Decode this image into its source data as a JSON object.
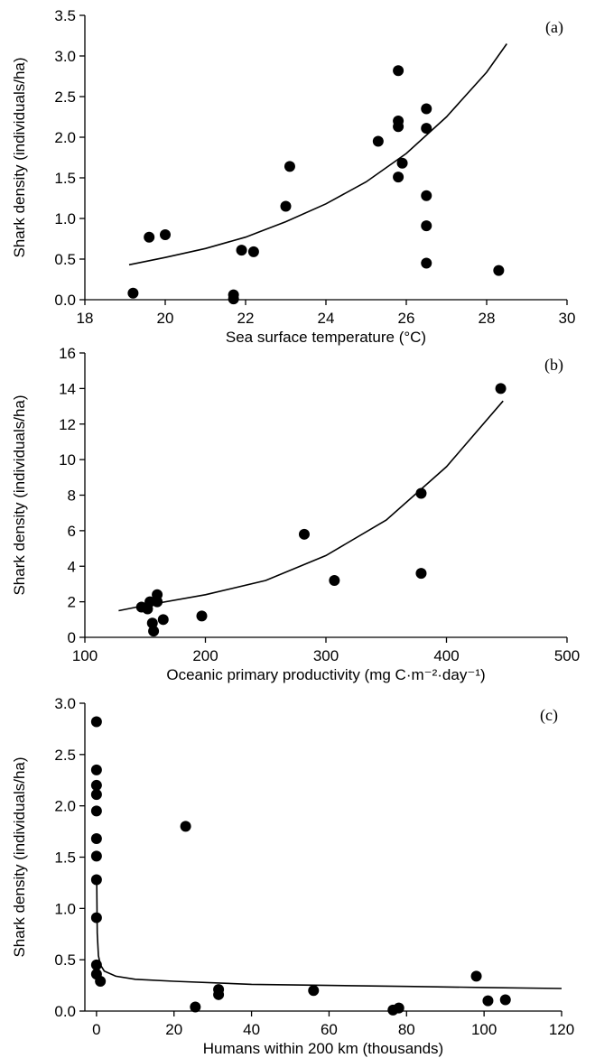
{
  "chart_data": [
    {
      "type": "scatter",
      "panel_label": "(a)",
      "xlabel": "Sea surface temperature (°C)",
      "ylabel": "Shark density (individuals/ha)",
      "xlim": [
        18,
        30
      ],
      "ylim": [
        0,
        3.5
      ],
      "xticks": [
        "18",
        "20",
        "22",
        "24",
        "26",
        "28",
        "30"
      ],
      "yticks": [
        "0.0",
        "0.5",
        "1.0",
        "1.5",
        "2.0",
        "2.5",
        "3.0",
        "3.5"
      ],
      "grid": false,
      "points": [
        [
          19.2,
          0.08
        ],
        [
          19.6,
          0.77
        ],
        [
          20.0,
          0.8
        ],
        [
          21.7,
          0.06
        ],
        [
          21.7,
          0.01
        ],
        [
          21.9,
          0.61
        ],
        [
          22.2,
          0.59
        ],
        [
          23.0,
          1.15
        ],
        [
          23.1,
          1.64
        ],
        [
          25.3,
          1.95
        ],
        [
          25.8,
          2.82
        ],
        [
          25.8,
          2.2
        ],
        [
          25.8,
          2.13
        ],
        [
          25.8,
          1.51
        ],
        [
          25.9,
          1.68
        ],
        [
          26.5,
          2.35
        ],
        [
          26.5,
          2.11
        ],
        [
          26.5,
          1.28
        ],
        [
          26.5,
          0.91
        ],
        [
          26.5,
          0.45
        ],
        [
          28.3,
          0.36
        ]
      ],
      "fit": {
        "model": "exponential",
        "x": [
          19.1,
          20,
          21,
          22,
          23,
          24,
          25,
          26,
          27,
          28,
          28.5
        ],
        "y": [
          0.43,
          0.52,
          0.63,
          0.77,
          0.96,
          1.18,
          1.45,
          1.8,
          2.25,
          2.8,
          3.15
        ]
      }
    },
    {
      "type": "scatter",
      "panel_label": "(b)",
      "xlabel": "Oceanic primary productivity (mg C·m⁻²·day⁻¹)",
      "ylabel": "Shark density (individuals/ha)",
      "xlim": [
        100,
        500
      ],
      "ylim": [
        0,
        16
      ],
      "xticks": [
        "100",
        "200",
        "300",
        "400",
        "500"
      ],
      "yticks": [
        "0",
        "2",
        "4",
        "6",
        "8",
        "10",
        "12",
        "14",
        "16"
      ],
      "grid": false,
      "points": [
        [
          147,
          1.7
        ],
        [
          152,
          1.6
        ],
        [
          154,
          2.0
        ],
        [
          156,
          0.8
        ],
        [
          157,
          0.35
        ],
        [
          160,
          2.4
        ],
        [
          160,
          2.0
        ],
        [
          165,
          1.0
        ],
        [
          197,
          1.2
        ],
        [
          282,
          5.8
        ],
        [
          307,
          3.2
        ],
        [
          379,
          8.1
        ],
        [
          379,
          3.6
        ],
        [
          445,
          14.0
        ]
      ],
      "fit": {
        "model": "exponential",
        "x": [
          128,
          150,
          200,
          250,
          300,
          350,
          400,
          447
        ],
        "y": [
          1.5,
          1.8,
          2.4,
          3.2,
          4.6,
          6.6,
          9.6,
          13.3
        ]
      }
    },
    {
      "type": "scatter",
      "panel_label": "(c)",
      "xlabel": "Humans within 200 km (thousands)",
      "ylabel": "Shark density (individuals/ha)",
      "xlim": [
        -3,
        120
      ],
      "ylim": [
        0,
        3.0
      ],
      "xticks": [
        "0",
        "20",
        "40",
        "60",
        "80",
        "100",
        "120"
      ],
      "yticks": [
        "0.0",
        "0.5",
        "1.0",
        "1.5",
        "2.0",
        "2.5",
        "3.0"
      ],
      "grid": false,
      "points": [
        [
          0,
          2.82
        ],
        [
          0,
          2.35
        ],
        [
          0,
          2.2
        ],
        [
          0,
          2.11
        ],
        [
          0,
          1.95
        ],
        [
          0,
          1.68
        ],
        [
          0,
          1.51
        ],
        [
          0,
          1.28
        ],
        [
          0,
          0.91
        ],
        [
          0,
          0.45
        ],
        [
          0,
          0.36
        ],
        [
          1.0,
          0.29
        ],
        [
          23,
          1.8
        ],
        [
          25.5,
          0.04
        ],
        [
          31.5,
          0.21
        ],
        [
          31.5,
          0.16
        ],
        [
          56,
          0.2
        ],
        [
          76.5,
          0.01
        ],
        [
          78,
          0.03
        ],
        [
          98,
          0.34
        ],
        [
          101,
          0.1
        ],
        [
          105.5,
          0.11
        ]
      ],
      "fit": {
        "model": "power",
        "x": [
          0.05,
          0.2,
          0.5,
          1,
          2,
          5,
          10,
          20,
          40,
          60,
          80,
          100,
          120
        ],
        "y": [
          1.3,
          0.76,
          0.54,
          0.45,
          0.39,
          0.34,
          0.31,
          0.29,
          0.26,
          0.25,
          0.24,
          0.23,
          0.22
        ]
      }
    }
  ]
}
